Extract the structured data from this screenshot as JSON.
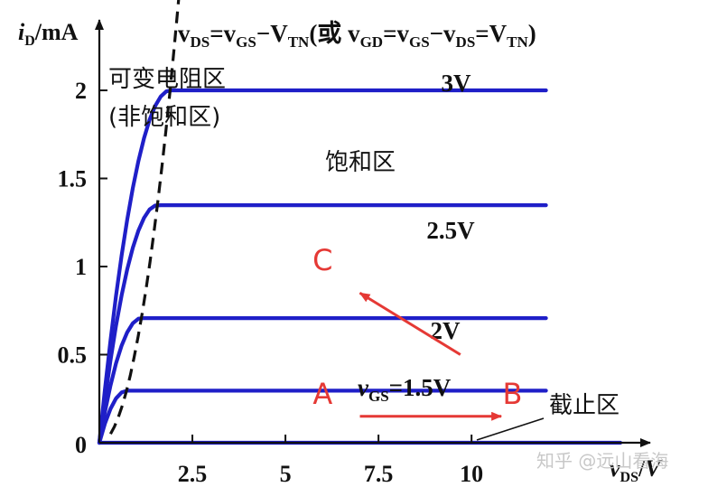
{
  "chart_data": {
    "type": "line",
    "title": "",
    "y_unit_label": "iD/mA",
    "x_unit_label": "vDS/V",
    "x_ticks": [
      2.5,
      5,
      7.5,
      10
    ],
    "x_tick_labels": [
      "2.5",
      "5",
      "7.5",
      "10"
    ],
    "y_ticks": [
      0,
      0.5,
      1,
      1.5,
      2
    ],
    "y_tick_labels": [
      "0",
      "0.5",
      "1",
      "1.5",
      "2"
    ],
    "xlim": [
      0,
      14.8
    ],
    "ylim": [
      0,
      2.4
    ],
    "grid": false,
    "legend": "none",
    "series_color": "#1f1fc8",
    "series": [
      {
        "name": "3V",
        "vov": 1.9,
        "x_end": 12
      },
      {
        "name": "2.5V",
        "vov": 1.56,
        "x_end": 12
      },
      {
        "name": "2V",
        "vov": 1.13,
        "x_end": 12
      },
      {
        "name": "vGS=1.5V",
        "vov": 0.73,
        "x_end": 12
      },
      {
        "name": "cutoff",
        "vov": 0,
        "x_end": 14
      }
    ],
    "curve_labels": [
      "3V",
      "2.5V",
      "2V",
      "vGS=1.5V"
    ],
    "boundary": {
      "label_parts": [
        "v",
        "DS",
        "=v",
        "GS",
        "−V",
        "TN",
        "(或 v",
        "GD",
        "=v",
        "GS",
        "−v",
        "DS",
        "=V",
        "TN",
        ")"
      ],
      "style": "dashed",
      "color": "#111111"
    },
    "regions": {
      "variable_resistance": "可变电阻区",
      "non_saturation": "(非饱和区)",
      "saturation": "饱和区",
      "cutoff": "截止区"
    },
    "annotations": {
      "color": "#e53935",
      "points": [
        {
          "label": "A",
          "x": 6.0,
          "y": 0.22
        },
        {
          "label": "B",
          "x": 11.1,
          "y": 0.22
        },
        {
          "label": "C",
          "x": 6.0,
          "y": 0.98
        }
      ],
      "arrows": [
        {
          "from": [
            7.0,
            0.15
          ],
          "to": [
            10.8,
            0.15
          ]
        },
        {
          "from": [
            9.7,
            0.5
          ],
          "to": [
            7.0,
            0.85
          ]
        }
      ]
    }
  },
  "watermark": "知乎 @远山看海"
}
